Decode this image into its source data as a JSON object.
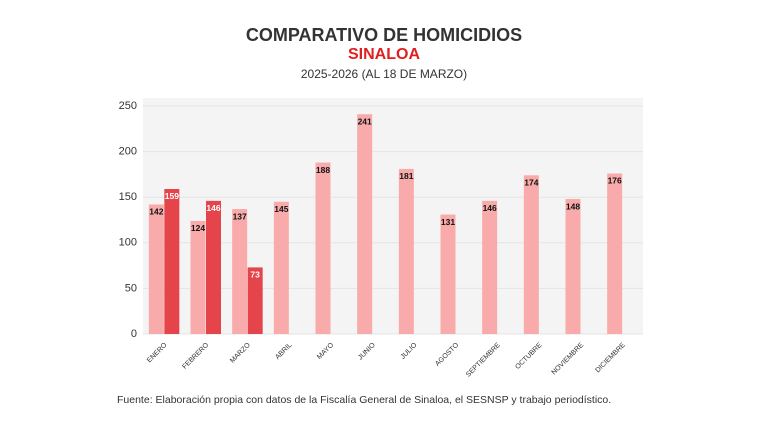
{
  "chart_data": {
    "type": "bar",
    "title": "COMPARATIVO DE HOMICIDIOS",
    "subtitle": "SINALOA",
    "period": "2025-2026 (AL 18 DE MARZO)",
    "source": "Fuente: Elaboración propia con datos de la Fiscalía General de Sinaloa, el SESNSP y trabajo periodístico.",
    "categories": [
      "ENERO",
      "FEBRERO",
      "MARZO",
      "ABRIL",
      "MAYO",
      "JUNIO",
      "JULIO",
      "AGOSTO",
      "SEPTIEMBRE",
      "OCTUBRE",
      "NOVIEMBRE",
      "DICIEMBRE"
    ],
    "series": [
      {
        "color": "#f9aaaa",
        "values": [
          142,
          124,
          137,
          145,
          188,
          241,
          181,
          131,
          146,
          174,
          148,
          176
        ]
      },
      {
        "color": "#e5454a",
        "values": [
          159,
          146,
          73,
          null,
          null,
          null,
          null,
          null,
          null,
          null,
          null,
          null
        ]
      }
    ],
    "ylim": [
      0,
      250
    ],
    "yticks": [
      0,
      50,
      100,
      150,
      200,
      250
    ],
    "grid": true
  }
}
